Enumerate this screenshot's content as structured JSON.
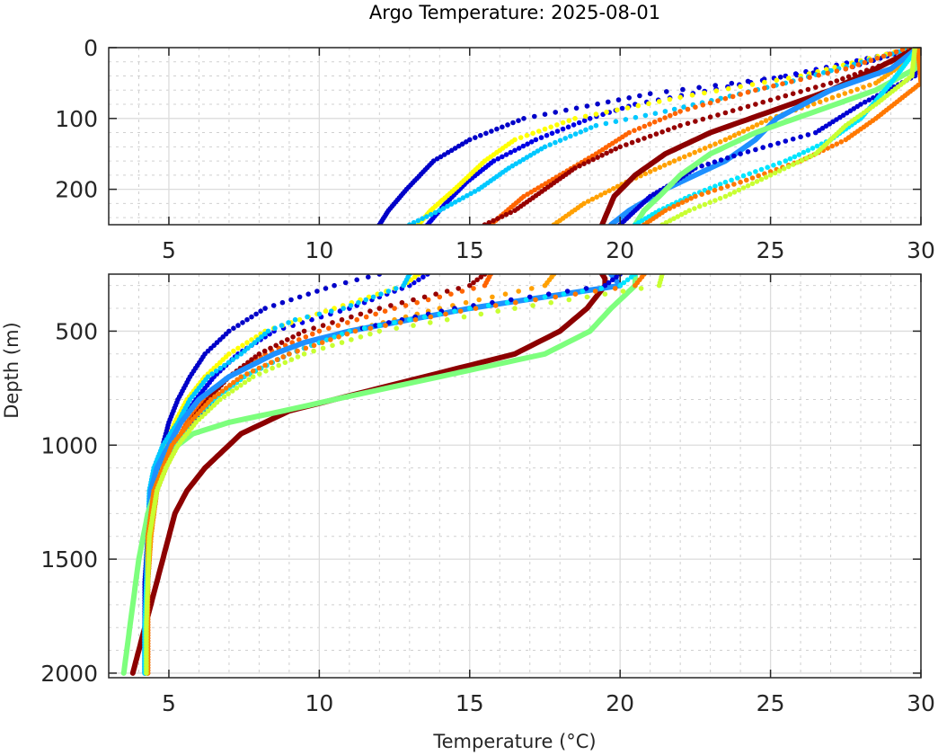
{
  "chart_data": {
    "type": "scatter",
    "title": "Argo Temperature: 2025-08-01",
    "xlabel": "Temperature (°C)",
    "ylabel": "Depth (m)",
    "xlim": [
      3,
      30
    ],
    "grid": true,
    "minor_grid": true,
    "panels": [
      {
        "name": "upper",
        "ylim": [
          0,
          250
        ],
        "yreverse": true,
        "xticks": [
          5,
          10,
          15,
          20,
          25,
          30
        ],
        "xtick_labels": [
          "5",
          "10",
          "15",
          "20",
          "25",
          "30"
        ],
        "yticks": [
          0,
          100,
          200
        ],
        "ytick_labels": [
          "0",
          "100",
          "200"
        ]
      },
      {
        "name": "lower",
        "ylim": [
          250,
          2020
        ],
        "yreverse": true,
        "xticks": [
          5,
          10,
          15,
          20,
          25,
          30
        ],
        "xtick_labels": [
          "5",
          "10",
          "15",
          "20",
          "25",
          "30"
        ],
        "yticks": [
          500,
          1000,
          1500,
          2000
        ],
        "ytick_labels": [
          "500",
          "1000",
          "1500",
          "2000"
        ]
      }
    ],
    "series": [
      {
        "name": "profile-1",
        "color": "#0000c8",
        "style": "dots",
        "depth": [
          0,
          30,
          65,
          100,
          130,
          160,
          200,
          230,
          250,
          300,
          400,
          500,
          600,
          700,
          800,
          900,
          1000,
          1100,
          1200,
          1400,
          1600,
          1800,
          2000
        ],
        "temp": [
          29.8,
          27.5,
          21.0,
          16.8,
          15.0,
          13.8,
          12.9,
          12.3,
          12.0,
          10.5,
          8.2,
          7.0,
          6.2,
          5.7,
          5.3,
          5.0,
          4.8,
          4.6,
          4.5,
          4.3,
          4.25,
          4.2,
          4.2
        ]
      },
      {
        "name": "profile-2",
        "color": "#0000e6",
        "style": "dots",
        "depth": [
          0,
          40,
          80,
          100,
          130,
          160,
          190,
          220,
          250,
          300,
          400,
          500,
          600,
          700,
          800,
          900,
          1000,
          1100,
          1200,
          1400,
          1600,
          1800,
          2000
        ],
        "temp": [
          29.9,
          25.5,
          20.5,
          19.0,
          17.2,
          15.8,
          14.9,
          14.2,
          13.6,
          13.0,
          11.0,
          8.5,
          7.3,
          6.5,
          5.9,
          5.4,
          5.0,
          4.7,
          4.5,
          4.35,
          4.3,
          4.25,
          4.25
        ]
      },
      {
        "name": "profile-3",
        "color": "#ffff00",
        "style": "dots",
        "depth": [
          0,
          40,
          70,
          100,
          130,
          160,
          200,
          230,
          250,
          300,
          400,
          500,
          600,
          700,
          800,
          900,
          1000,
          1100,
          1200,
          1400,
          1600,
          1800,
          2000
        ],
        "temp": [
          29.7,
          26.0,
          22.0,
          18.5,
          16.5,
          15.5,
          14.5,
          13.7,
          13.3,
          12.8,
          10.5,
          8.2,
          7.0,
          6.2,
          5.6,
          5.2,
          4.9,
          4.6,
          4.5,
          4.35,
          4.3,
          4.25,
          4.25
        ]
      },
      {
        "name": "profile-4",
        "color": "#00c8ff",
        "style": "dots",
        "depth": [
          0,
          50,
          90,
          110,
          140,
          170,
          200,
          230,
          250,
          300,
          400,
          450,
          500,
          600,
          700,
          800,
          900,
          1000,
          1100,
          1200,
          1400,
          1600,
          2000
        ],
        "temp": [
          29.8,
          25.5,
          21.5,
          19.2,
          17.5,
          16.3,
          15.3,
          14.0,
          13.0,
          12.8,
          10.8,
          9.2,
          8.3,
          7.4,
          6.3,
          5.7,
          5.3,
          4.8,
          4.5,
          4.35,
          4.3,
          4.25,
          4.25
        ]
      },
      {
        "name": "profile-5",
        "color": "#ff6400",
        "style": "dots",
        "depth": [
          0,
          30,
          60,
          90,
          120,
          150,
          180,
          210,
          250,
          300,
          400,
          500,
          600,
          700,
          800,
          900,
          1000,
          1100,
          1200,
          1400,
          1600,
          1800,
          2000
        ],
        "temp": [
          29.6,
          27.5,
          24.5,
          22.0,
          20.3,
          19.2,
          18.0,
          16.8,
          15.7,
          15.5,
          12.5,
          10.0,
          8.2,
          7.0,
          6.2,
          5.6,
          5.2,
          4.8,
          4.6,
          4.4,
          4.3,
          4.3,
          4.3
        ]
      },
      {
        "name": "profile-6",
        "color": "#960000",
        "style": "dots",
        "depth": [
          0,
          20,
          50,
          80,
          110,
          140,
          170,
          200,
          230,
          250,
          300,
          400,
          500,
          600,
          700,
          800,
          900,
          1000,
          1100,
          1200,
          1400,
          1600,
          1800,
          2000
        ],
        "temp": [
          29.8,
          29.0,
          27.0,
          24.5,
          22.0,
          20.0,
          18.5,
          17.5,
          16.5,
          15.5,
          15.0,
          12.0,
          9.5,
          8.0,
          7.0,
          6.3,
          5.7,
          5.2,
          4.9,
          4.6,
          4.4,
          4.3,
          4.3,
          4.3
        ]
      },
      {
        "name": "profile-7",
        "color": "#ffa000",
        "style": "dots",
        "depth": [
          0,
          20,
          50,
          100,
          130,
          160,
          190,
          220,
          250,
          300,
          400,
          500,
          600,
          700,
          800,
          900,
          1000,
          1100,
          1200,
          1400,
          1600,
          1800,
          2000
        ],
        "temp": [
          29.9,
          29.5,
          28.5,
          25.0,
          23.5,
          21.8,
          20.2,
          18.8,
          17.8,
          17.5,
          14.0,
          11.0,
          9.0,
          7.5,
          6.5,
          5.8,
          5.3,
          4.9,
          4.6,
          4.4,
          4.3,
          4.3,
          4.3
        ]
      },
      {
        "name": "profile-8",
        "color": "#8c0000",
        "style": "line",
        "depth": [
          0,
          30,
          60,
          90,
          120,
          150,
          180,
          210,
          250,
          270,
          300,
          400,
          500,
          600,
          700,
          750,
          800,
          850,
          900,
          950,
          1000,
          1100,
          1200,
          1300,
          1500,
          1700,
          1900,
          2000
        ],
        "temp": [
          29.9,
          28.5,
          27.0,
          25.0,
          23.0,
          21.5,
          20.5,
          19.8,
          19.4,
          19.5,
          19.5,
          18.9,
          18.0,
          16.5,
          13.5,
          12.0,
          10.5,
          9.0,
          8.2,
          7.4,
          7.0,
          6.2,
          5.6,
          5.2,
          4.8,
          4.4,
          4.0,
          3.8
        ]
      },
      {
        "name": "profile-9",
        "color": "#1e90ff",
        "style": "line",
        "depth": [
          0,
          30,
          60,
          100,
          130,
          160,
          180,
          200,
          230,
          250,
          300,
          400,
          500,
          550,
          600,
          700,
          800,
          900,
          1000,
          1100,
          1200,
          1400,
          1600,
          1800,
          2000
        ],
        "temp": [
          29.9,
          29.0,
          27.0,
          25.2,
          24.5,
          23.5,
          22.5,
          21.5,
          20.3,
          19.7,
          20.0,
          15.0,
          11.0,
          9.5,
          8.5,
          7.0,
          6.0,
          5.4,
          5.0,
          4.6,
          4.4,
          4.3,
          4.25,
          4.2,
          4.2
        ]
      },
      {
        "name": "profile-10",
        "color": "#0000d2",
        "style": "dots",
        "depth": [
          0,
          40,
          80,
          120,
          150,
          170,
          190,
          210,
          230,
          250,
          300,
          400,
          500,
          600,
          700,
          800,
          900,
          1000,
          1100,
          1200,
          1400,
          1600,
          1800,
          2000
        ],
        "temp": [
          29.9,
          29.8,
          28.0,
          26.5,
          24.0,
          22.5,
          21.8,
          21.0,
          20.5,
          20.0,
          19.5,
          14.5,
          11.0,
          9.0,
          7.5,
          6.5,
          5.8,
          5.2,
          4.8,
          4.5,
          4.3,
          4.2,
          4.2,
          4.2
        ]
      },
      {
        "name": "profile-11",
        "color": "#7dff7d",
        "style": "line",
        "depth": [
          0,
          30,
          60,
          90,
          120,
          150,
          180,
          210,
          230,
          250,
          300,
          400,
          500,
          600,
          700,
          800,
          850,
          900,
          950,
          1000,
          1100,
          1300,
          1500,
          1700,
          1900,
          2000
        ],
        "temp": [
          29.9,
          29.8,
          28.5,
          26.5,
          24.5,
          23.0,
          22.0,
          21.3,
          20.8,
          20.5,
          20.5,
          19.7,
          19.0,
          17.5,
          14.0,
          10.5,
          8.8,
          7.0,
          5.8,
          5.3,
          4.8,
          4.3,
          4.0,
          3.8,
          3.6,
          3.5
        ]
      },
      {
        "name": "profile-12",
        "color": "#00e6ff",
        "style": "dots",
        "depth": [
          0,
          50,
          100,
          130,
          160,
          190,
          210,
          230,
          250,
          300,
          400,
          500,
          600,
          700,
          800,
          900,
          1000,
          1100,
          1200,
          1400,
          1600,
          1800,
          2000
        ],
        "temp": [
          29.9,
          29.0,
          28.0,
          27.0,
          25.5,
          23.5,
          22.3,
          21.3,
          20.5,
          20.0,
          15.0,
          11.0,
          9.0,
          7.5,
          6.5,
          5.7,
          5.2,
          4.8,
          4.5,
          4.3,
          4.25,
          4.2,
          4.2
        ]
      },
      {
        "name": "profile-13",
        "color": "#ff7800",
        "style": "dots",
        "depth": [
          0,
          50,
          100,
          130,
          160,
          190,
          210,
          230,
          250,
          300,
          400,
          500,
          600,
          700,
          800,
          900,
          1000,
          1100,
          1200,
          1400,
          1600,
          1800,
          2000
        ],
        "temp": [
          29.9,
          30.0,
          28.5,
          27.5,
          26.0,
          24.0,
          22.5,
          21.5,
          20.8,
          20.5,
          15.2,
          11.2,
          9.0,
          7.4,
          6.4,
          5.7,
          5.1,
          4.8,
          4.5,
          4.3,
          4.3,
          4.3,
          4.3
        ]
      },
      {
        "name": "profile-14",
        "color": "#c8ff32",
        "style": "dots",
        "depth": [
          0,
          40,
          80,
          110,
          150,
          180,
          210,
          230,
          250,
          300,
          400,
          500,
          600,
          700,
          800,
          900,
          1000,
          1100,
          1200,
          1400,
          1600,
          1800,
          2000
        ],
        "temp": [
          29.8,
          29.7,
          28.5,
          27.5,
          26.5,
          25.0,
          23.5,
          22.3,
          21.4,
          21.3,
          16.5,
          12.0,
          9.5,
          7.8,
          6.7,
          5.9,
          5.3,
          4.9,
          4.6,
          4.35,
          4.3,
          4.25,
          4.25
        ]
      }
    ]
  }
}
